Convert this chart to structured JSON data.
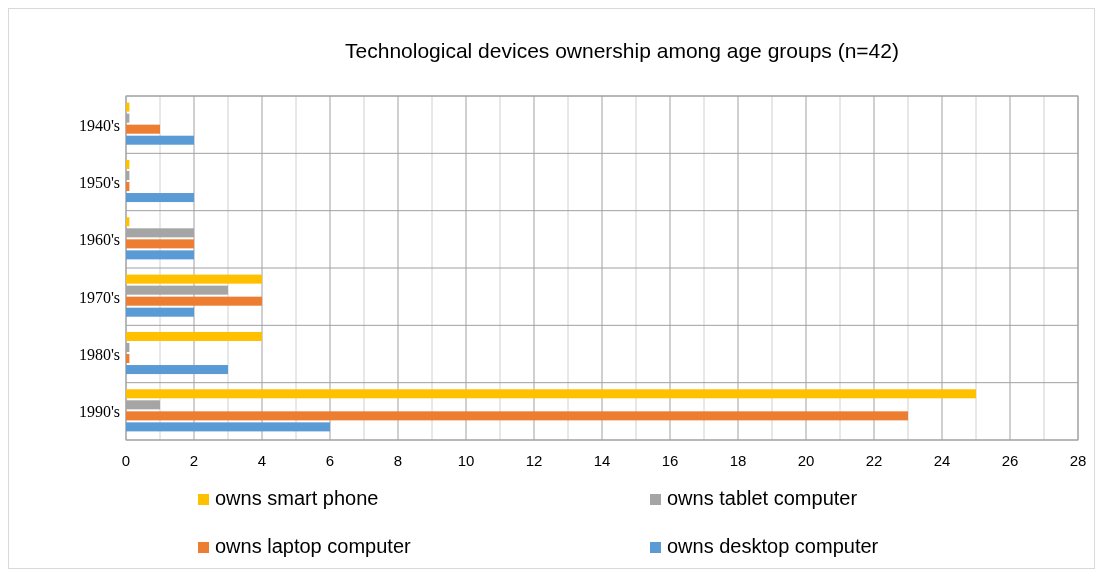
{
  "chart_data": {
    "type": "bar",
    "orientation": "horizontal",
    "title": "Technological devices ownership among age groups (n=42)",
    "categories": [
      "1940's",
      "1950's",
      "1960's",
      "1970's",
      "1980's",
      "1990's"
    ],
    "series": [
      {
        "name": "owns smart phone",
        "color": "#ffc000",
        "values": [
          0.1,
          0.1,
          0.1,
          4,
          4,
          25
        ]
      },
      {
        "name": "owns tablet computer",
        "color": "#a5a5a5",
        "values": [
          0.1,
          0.1,
          2,
          3,
          0.1,
          1
        ]
      },
      {
        "name": "owns laptop computer",
        "color": "#ed7d31",
        "values": [
          1,
          0.1,
          2,
          4,
          0.1,
          23
        ]
      },
      {
        "name": "owns desktop computer",
        "color": "#5b9bd5",
        "values": [
          2,
          2,
          2,
          2,
          3,
          6
        ]
      }
    ],
    "xlim": [
      0,
      28
    ],
    "xticks": [
      0,
      {
        "value": 1,
        "label": null
      },
      2,
      {
        "value": 3,
        "label": null
      },
      4,
      {
        "value": 5,
        "label": null
      },
      6,
      {
        "value": 7,
        "label": null
      },
      8,
      {
        "value": 9,
        "label": null
      },
      10,
      {
        "value": 11,
        "label": null
      },
      12,
      {
        "value": 13,
        "label": null
      },
      14,
      {
        "value": 15,
        "label": null
      },
      16,
      {
        "value": 17,
        "label": null
      },
      18,
      {
        "value": 19,
        "label": null
      },
      20,
      {
        "value": 21,
        "label": null
      },
      22,
      {
        "value": 23,
        "label": null
      },
      24,
      {
        "value": 25,
        "label": null
      },
      26,
      {
        "value": 27,
        "label": null
      },
      28
    ],
    "grid": true,
    "legend": "bottom"
  }
}
